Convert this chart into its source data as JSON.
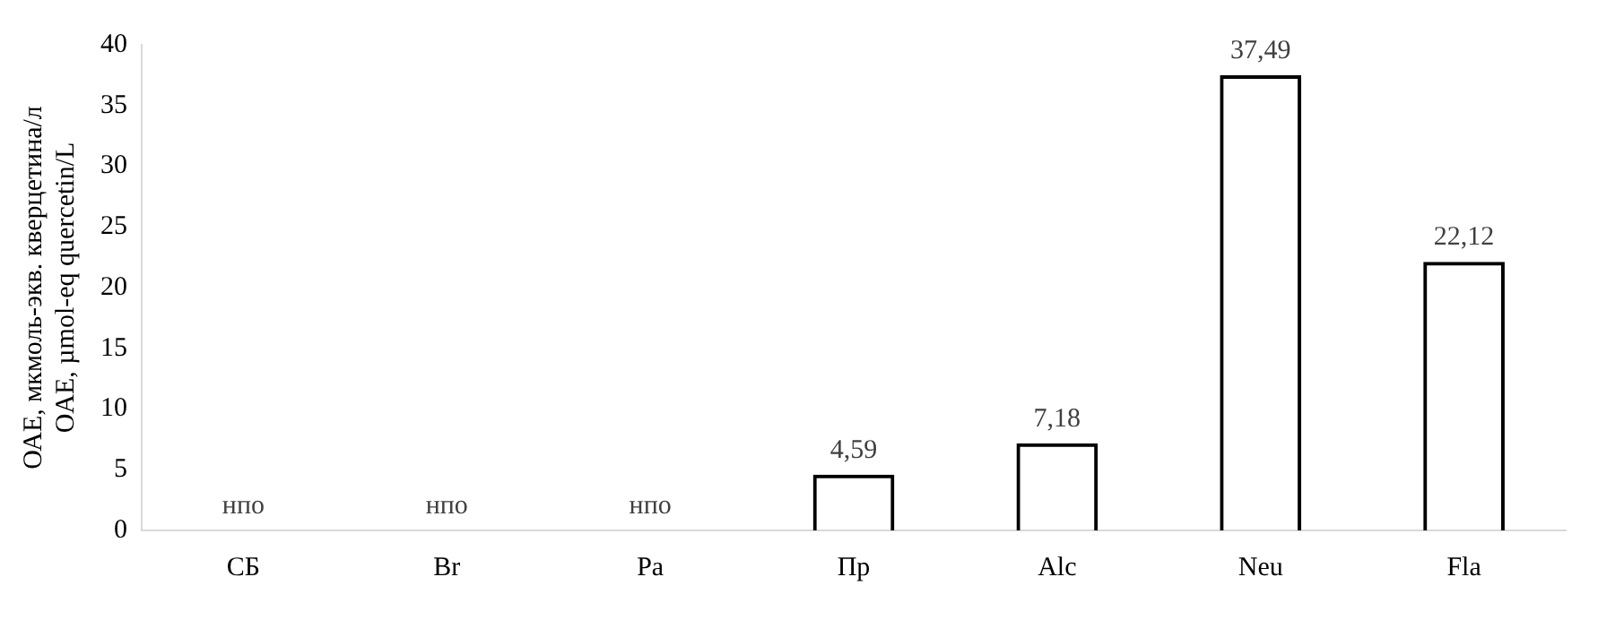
{
  "chart_data": {
    "type": "bar",
    "ylabel": "ОАЕ, мкмоль-экв. кверцетина/л\nOAE, µmol-eq quercetin/L",
    "categories": [
      "СБ",
      "Br",
      "Pa",
      "Пр",
      "Alc",
      "Neu",
      "Fla"
    ],
    "values": [
      null,
      null,
      null,
      4.59,
      7.18,
      37.49,
      22.12
    ],
    "value_labels": [
      "нпо",
      "нпо",
      "нпо",
      "4,59",
      "7,18",
      "37,49",
      "22,12"
    ],
    "color": "#000000",
    "ylim": [
      0,
      40
    ],
    "yticks": [
      0,
      5,
      10,
      15,
      20,
      25,
      30,
      35,
      40
    ],
    "grid": false,
    "legend": false
  }
}
